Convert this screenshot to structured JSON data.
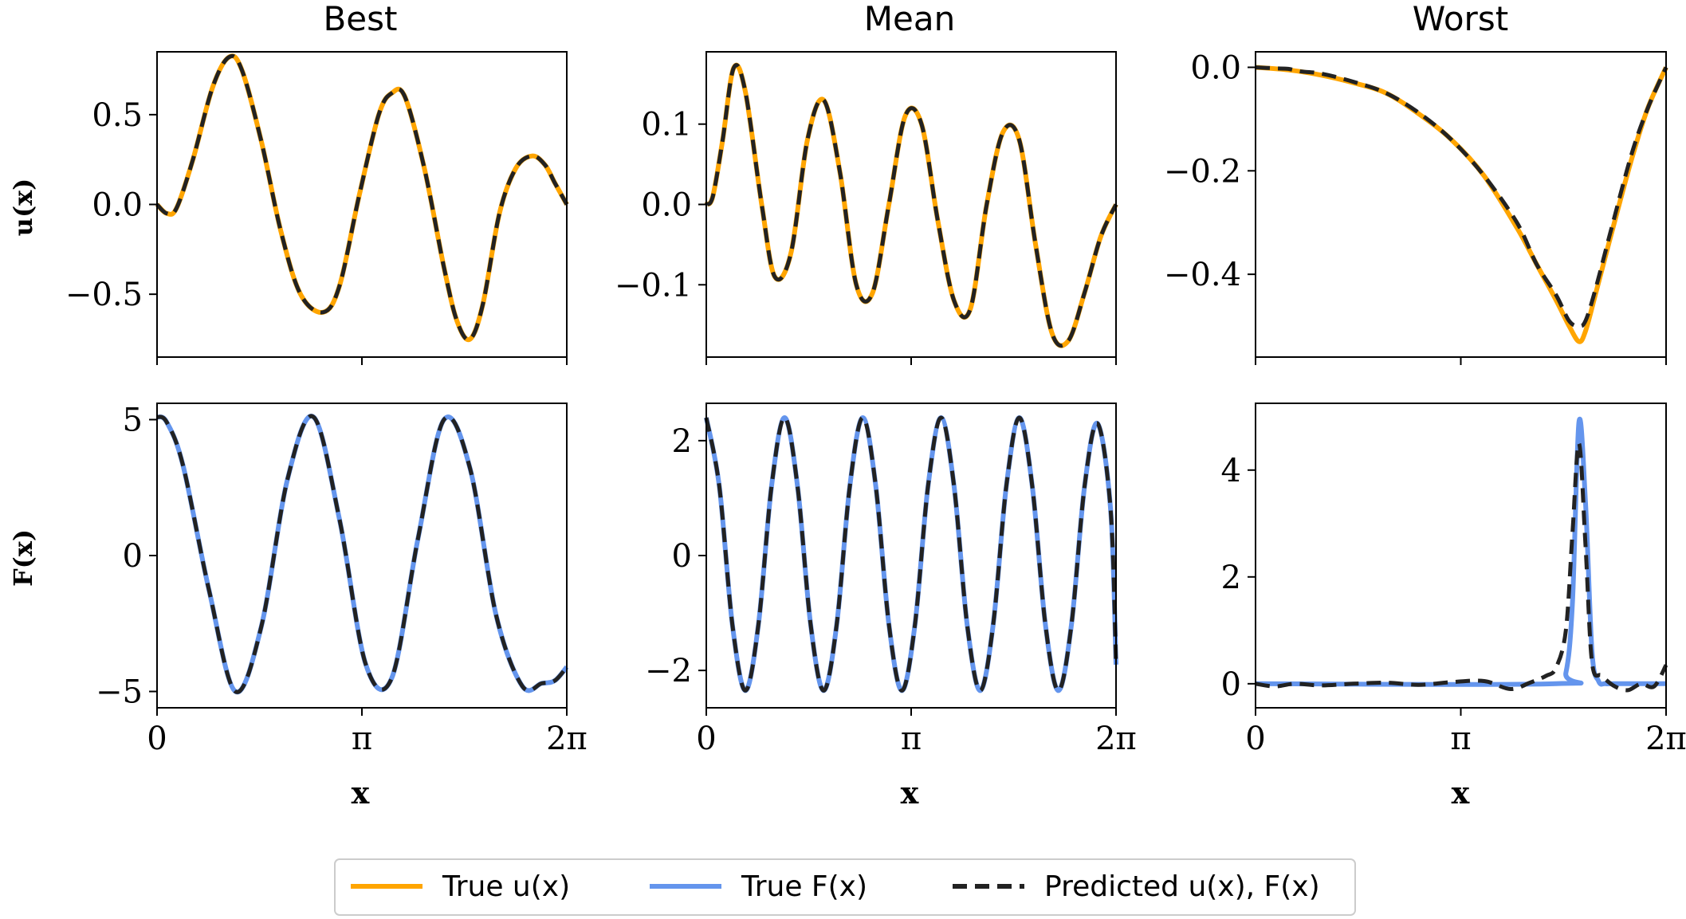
{
  "colors": {
    "true_u": "#FFA500",
    "true_F": "#6495ED",
    "predicted": "#222222",
    "axes": "#000000"
  },
  "x_label": "x",
  "row_labels": [
    "u(x)",
    "F(x)"
  ],
  "column_titles": [
    "Best",
    "Mean",
    "Worst"
  ],
  "x_tick_labels": [
    "0",
    "π",
    "2π"
  ],
  "legend": {
    "placement": "bottom-center",
    "items": [
      {
        "label": "True u(x)",
        "style": "solid",
        "color": "#FFA500"
      },
      {
        "label": "True F(x)",
        "style": "solid",
        "color": "#6495ED"
      },
      {
        "label": "Predicted u(x), F(x)",
        "style": "dashed",
        "color": "#222222"
      }
    ]
  },
  "chart_data": [
    {
      "type": "line",
      "title": "Best",
      "ylabel": "u(x)",
      "xlabel": "",
      "xlim": [
        0,
        6.2832
      ],
      "ylim": [
        -0.85,
        0.85
      ],
      "yticks": [
        "0.5",
        "0.0",
        "−0.5"
      ],
      "ytick_values": [
        0.5,
        0.0,
        -0.5
      ],
      "series": [
        {
          "name": "True u(x)",
          "x": [
            0,
            0.15,
            0.3,
            0.55,
            0.85,
            1.1,
            1.3,
            1.6,
            1.9,
            2.2,
            2.55,
            2.8,
            3.1,
            3.4,
            3.6,
            3.8,
            4.1,
            4.4,
            4.6,
            4.8,
            5.0,
            5.25,
            5.5,
            5.75,
            5.95,
            6.1,
            6.2832
          ],
          "values": [
            0.0,
            -0.05,
            -0.02,
            0.25,
            0.65,
            0.82,
            0.75,
            0.35,
            -0.15,
            -0.5,
            -0.6,
            -0.45,
            0.05,
            0.5,
            0.62,
            0.6,
            0.2,
            -0.35,
            -0.65,
            -0.75,
            -0.55,
            -0.05,
            0.2,
            0.27,
            0.22,
            0.12,
            0.0
          ]
        },
        {
          "name": "Predicted",
          "same_as": 0
        }
      ]
    },
    {
      "type": "line",
      "title": "Mean",
      "ylabel": "",
      "xlabel": "",
      "xlim": [
        0,
        6.2832
      ],
      "ylim": [
        -0.19,
        0.19
      ],
      "yticks": [
        "0.1",
        "0.0",
        "−0.1"
      ],
      "ytick_values": [
        0.1,
        0.0,
        -0.1
      ],
      "series": [
        {
          "name": "True u(x)",
          "x": [
            0,
            0.1,
            0.25,
            0.42,
            0.6,
            0.85,
            1.05,
            1.3,
            1.55,
            1.8,
            2.05,
            2.3,
            2.55,
            2.8,
            3.05,
            3.3,
            3.55,
            3.8,
            4.05,
            4.3,
            4.55,
            4.8,
            5.05,
            5.3,
            5.55,
            5.8,
            6.05,
            6.2832
          ],
          "values": [
            0.0,
            0.01,
            0.08,
            0.17,
            0.14,
            0.0,
            -0.09,
            -0.06,
            0.08,
            0.13,
            0.04,
            -0.1,
            -0.11,
            0.0,
            0.11,
            0.1,
            -0.02,
            -0.12,
            -0.13,
            0.0,
            0.09,
            0.08,
            -0.05,
            -0.16,
            -0.17,
            -0.11,
            -0.04,
            0.0
          ]
        },
        {
          "name": "Predicted",
          "same_as": 0
        }
      ]
    },
    {
      "type": "line",
      "title": "Worst",
      "ylabel": "",
      "xlabel": "",
      "xlim": [
        0,
        6.2832
      ],
      "ylim": [
        -0.56,
        0.03
      ],
      "yticks": [
        "0.0",
        "−0.2",
        "−0.4"
      ],
      "ytick_values": [
        0.0,
        -0.2,
        -0.4
      ],
      "series": [
        {
          "name": "True u(x)",
          "x": [
            0,
            0.5,
            1.0,
            1.5,
            2.0,
            2.5,
            3.0,
            3.5,
            4.0,
            4.3,
            4.6,
            4.8,
            4.95,
            5.05,
            5.2,
            5.45,
            5.75,
            6.0,
            6.2832
          ],
          "values": [
            0.0,
            -0.005,
            -0.015,
            -0.03,
            -0.05,
            -0.09,
            -0.14,
            -0.21,
            -0.31,
            -0.38,
            -0.45,
            -0.5,
            -0.53,
            -0.51,
            -0.44,
            -0.32,
            -0.18,
            -0.08,
            0.0
          ]
        },
        {
          "name": "Predicted u(x), F(x)",
          "x": [
            0,
            0.3,
            0.5,
            0.7,
            1.0,
            1.5,
            2.0,
            2.5,
            3.0,
            3.5,
            4.0,
            4.3,
            4.6,
            4.8,
            4.95,
            5.05,
            5.2,
            5.45,
            5.75,
            6.0,
            6.2832
          ],
          "values": [
            0.0,
            -0.002,
            -0.003,
            -0.008,
            -0.012,
            -0.028,
            -0.05,
            -0.088,
            -0.14,
            -0.21,
            -0.3,
            -0.38,
            -0.44,
            -0.49,
            -0.5,
            -0.49,
            -0.43,
            -0.31,
            -0.17,
            -0.08,
            0.0
          ]
        }
      ]
    },
    {
      "type": "line",
      "title": "",
      "ylabel": "F(x)",
      "xlabel": "x",
      "xlim": [
        0,
        6.2832
      ],
      "ylim": [
        -5.6,
        5.6
      ],
      "yticks": [
        "5",
        "0",
        "−5"
      ],
      "ytick_values": [
        5,
        0,
        -5
      ],
      "series": [
        {
          "name": "True F(x)",
          "x": [
            0,
            0.15,
            0.4,
            0.8,
            1.2,
            1.6,
            2.0,
            2.4,
            2.8,
            3.2,
            3.6,
            4.0,
            4.4,
            4.8,
            5.2,
            5.6,
            5.9,
            6.1,
            6.2832
          ],
          "values": [
            5.1,
            4.9,
            3.3,
            -1.3,
            -5.0,
            -2.6,
            2.8,
            5.1,
            1.3,
            -4.0,
            -4.5,
            0.6,
            5.0,
            3.2,
            -2.2,
            -4.8,
            -4.7,
            -4.6,
            -4.1
          ]
        },
        {
          "name": "Predicted",
          "same_as": 0
        }
      ]
    },
    {
      "type": "line",
      "title": "",
      "ylabel": "",
      "xlabel": "x",
      "xlim": [
        0,
        6.2832
      ],
      "ylim": [
        -2.65,
        2.65
      ],
      "yticks": [
        "2",
        "0",
        "−2"
      ],
      "ytick_values": [
        2,
        0,
        -2
      ],
      "series": [
        {
          "name": "True F(x)",
          "x": [
            0,
            0.2,
            0.4,
            0.6,
            0.8,
            1.0,
            1.2,
            1.4,
            1.6,
            1.8,
            2.0,
            2.2,
            2.4,
            2.6,
            2.8,
            3.0,
            3.2,
            3.4,
            3.6,
            3.8,
            4.0,
            4.2,
            4.4,
            4.6,
            4.8,
            5.0,
            5.2,
            5.4,
            5.6,
            5.8,
            6.0,
            6.2,
            6.2832
          ],
          "values": [
            2.4,
            1.2,
            -1.2,
            -2.35,
            -1.2,
            1.2,
            2.4,
            1.2,
            -1.2,
            -2.35,
            -1.2,
            1.2,
            2.4,
            1.2,
            -1.2,
            -2.35,
            -1.2,
            1.2,
            2.4,
            1.2,
            -1.2,
            -2.35,
            -1.2,
            1.2,
            2.4,
            1.2,
            -1.2,
            -2.35,
            -1.2,
            1.2,
            2.3,
            0.8,
            -1.9
          ]
        },
        {
          "name": "Predicted",
          "same_as": 0
        }
      ]
    },
    {
      "type": "line",
      "title": "",
      "ylabel": "",
      "xlabel": "x",
      "xlim": [
        0,
        6.2832
      ],
      "ylim": [
        -0.45,
        5.25
      ],
      "yticks": [
        "4",
        "2",
        "0"
      ],
      "ytick_values": [
        4,
        2,
        0
      ],
      "series": [
        {
          "name": "True F(x)",
          "x": [
            0,
            4.6,
            4.75,
            4.85,
            4.95,
            5.05,
            5.15,
            5.25,
            5.35,
            5.5,
            6.2832
          ],
          "values": [
            0.0,
            0.0,
            0.2,
            1.5,
            4.9,
            3.4,
            0.6,
            0.05,
            0.0,
            0.0,
            0.0
          ]
        },
        {
          "name": "Predicted u(x), F(x)",
          "x": [
            0,
            0.3,
            0.6,
            1.0,
            1.5,
            2.0,
            2.5,
            3.0,
            3.5,
            3.9,
            4.2,
            4.45,
            4.6,
            4.75,
            4.85,
            4.95,
            5.05,
            5.15,
            5.3,
            5.5,
            5.7,
            5.9,
            6.1,
            6.2832
          ],
          "values": [
            0.0,
            -0.05,
            0.0,
            -0.03,
            0.0,
            0.02,
            -0.02,
            0.03,
            0.05,
            -0.1,
            0.02,
            0.15,
            0.3,
            1.0,
            2.8,
            4.5,
            2.6,
            0.4,
            0.15,
            -0.05,
            -0.12,
            0.0,
            -0.05,
            0.35
          ]
        }
      ]
    }
  ]
}
